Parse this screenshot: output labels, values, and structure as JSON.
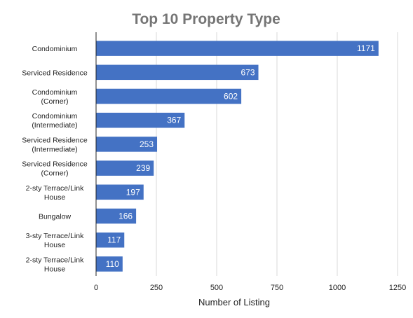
{
  "chart_data": {
    "type": "bar",
    "orientation": "horizontal",
    "title": "Top 10 Property Type",
    "xlabel": "Number of Listing",
    "ylabel": "",
    "categories": [
      [
        "Condominium"
      ],
      [
        "Serviced Residence"
      ],
      [
        "Condominium",
        "(Corner)"
      ],
      [
        "Condominium",
        "(Intermediate)"
      ],
      [
        "Serviced Residence",
        "(Intermediate)"
      ],
      [
        "Serviced Residence",
        "(Corner)"
      ],
      [
        "2-sty Terrace/Link",
        "House"
      ],
      [
        "Bungalow"
      ],
      [
        "3-sty Terrace/Link",
        "House"
      ],
      [
        "2-sty Terrace/Link",
        "House"
      ]
    ],
    "values": [
      1171,
      673,
      602,
      367,
      253,
      239,
      197,
      166,
      117,
      110
    ],
    "xlim": [
      0,
      1250
    ],
    "xticks": [
      0,
      250,
      500,
      750,
      1000,
      1250
    ],
    "grid": true,
    "legend": "none",
    "colors": {
      "bar": "#4472c4",
      "grid": "#d9d9d9",
      "title": "#757575"
    }
  }
}
